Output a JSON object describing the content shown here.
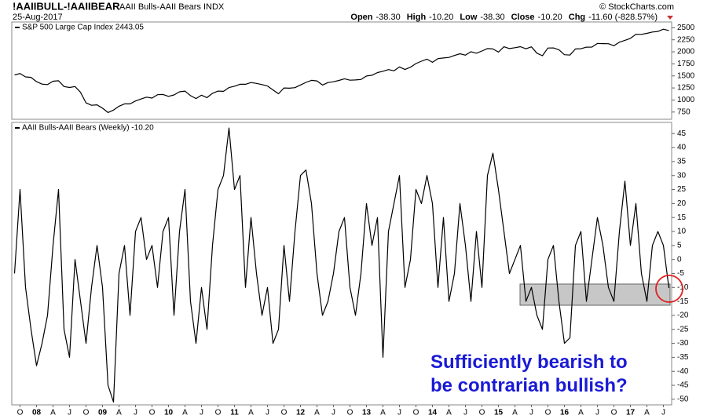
{
  "chart_data": [
    {
      "type": "line",
      "title": "!AAIIBULL-!AAIIBEAR",
      "subtitle": "AAII Bulls-AAII Bears INDX",
      "date": "25-Aug-2017",
      "source": "© StockCharts.com",
      "quote": [
        {
          "label": "Open",
          "value": "-38.30"
        },
        {
          "label": "High",
          "value": "-10.20"
        },
        {
          "label": "Low",
          "value": "-38.30"
        },
        {
          "label": "Close",
          "value": "-10.20"
        },
        {
          "label": "Chg",
          "value": "-11.60 (-828.57%)"
        }
      ],
      "series": [
        {
          "name": "S&P 500 Large Cap Index 2443.05",
          "color": "#000000",
          "values": [
            1520,
            1550,
            1480,
            1470,
            1380,
            1330,
            1320,
            1390,
            1400,
            1280,
            1260,
            1280,
            1160,
            940,
            890,
            900,
            830,
            740,
            790,
            870,
            920,
            920,
            980,
            1020,
            1060,
            1040,
            1110,
            1115,
            1075,
            1105,
            1170,
            1185,
            1090,
            1030,
            1100,
            1050,
            1140,
            1185,
            1180,
            1258,
            1286,
            1327,
            1326,
            1363,
            1345,
            1320,
            1290,
            1210,
            1130,
            1250,
            1245,
            1257,
            1312,
            1365,
            1408,
            1397,
            1310,
            1362,
            1379,
            1406,
            1440,
            1412,
            1416,
            1426,
            1498,
            1514,
            1569,
            1597,
            1631,
            1606,
            1686,
            1633,
            1682,
            1757,
            1806,
            1848,
            1783,
            1859,
            1872,
            1884,
            1924,
            1960,
            1931,
            2003,
            1972,
            2018,
            2068,
            2059,
            1995,
            2105,
            2068,
            2086,
            2107,
            2063,
            2104,
            1972,
            1920,
            2079,
            2080,
            2044,
            1940,
            1932,
            2060,
            2065,
            2097,
            2099,
            2174,
            2171,
            2168,
            2126,
            2199,
            2239,
            2279,
            2364,
            2363,
            2384,
            2412,
            2423,
            2470,
            2443
          ]
        }
      ],
      "ylim": [
        600,
        2620
      ],
      "yticks": [
        750,
        1000,
        1250,
        1500,
        1750,
        2000,
        2250,
        2500
      ],
      "grid": false
    },
    {
      "type": "line",
      "categories": [
        null,
        "O",
        null,
        null,
        "08",
        null,
        null,
        "A",
        null,
        null,
        "J",
        null,
        null,
        "O",
        null,
        null,
        "09",
        null,
        null,
        "A",
        null,
        null,
        "J",
        null,
        null,
        "O",
        null,
        null,
        "10",
        null,
        null,
        "A",
        null,
        null,
        "J",
        null,
        null,
        "O",
        null,
        null,
        "11",
        null,
        null,
        "A",
        null,
        null,
        "J",
        null,
        null,
        "O",
        null,
        null,
        "12",
        null,
        null,
        "A",
        null,
        null,
        "J",
        null,
        null,
        "O",
        null,
        null,
        "13",
        null,
        null,
        "A",
        null,
        null,
        "J",
        null,
        null,
        "O",
        null,
        null,
        "14",
        null,
        null,
        "A",
        null,
        null,
        "J",
        null,
        null,
        "O",
        null,
        null,
        "15",
        null,
        null,
        "A",
        null,
        null,
        "J",
        null,
        null,
        "O",
        null,
        null,
        "16",
        null,
        null,
        "A",
        null,
        null,
        "J",
        null,
        null,
        "O",
        null,
        null,
        "17",
        null,
        null,
        "A",
        null,
        null,
        "J",
        null
      ],
      "series": [
        {
          "name": "AAII Bulls-AAII Bears (Weekly) -10.20",
          "color": "#000000",
          "values": [
            -5,
            25,
            -10,
            -25,
            -38,
            -30,
            -20,
            5,
            25,
            -25,
            -35,
            0,
            -15,
            -30,
            -10,
            5,
            -10,
            -45,
            -51,
            -5,
            5,
            -20,
            10,
            15,
            0,
            5,
            -10,
            10,
            15,
            -20,
            10,
            25,
            -15,
            -30,
            -10,
            -25,
            5,
            25,
            30,
            47,
            25,
            30,
            -10,
            15,
            -5,
            -20,
            -10,
            -30,
            -25,
            5,
            -15,
            10,
            30,
            32,
            20,
            -5,
            -20,
            -15,
            -5,
            10,
            15,
            -10,
            -20,
            -5,
            20,
            5,
            15,
            -35,
            10,
            20,
            30,
            -10,
            0,
            25,
            20,
            30,
            20,
            -10,
            15,
            -15,
            -5,
            20,
            5,
            -15,
            10,
            -10,
            30,
            38,
            25,
            10,
            -5,
            0,
            5,
            -15,
            -10,
            -20,
            -25,
            0,
            5,
            -15,
            -30,
            -28,
            5,
            10,
            -15,
            0,
            15,
            5,
            -10,
            -15,
            10,
            28,
            5,
            20,
            -5,
            -15,
            5,
            10,
            5,
            -10.2
          ]
        }
      ],
      "annotation": [
        "Sufficiently bearish to",
        "be contrarian bullish?"
      ],
      "ylim": [
        -52,
        49
      ],
      "yticks": [
        45,
        40,
        35,
        30,
        25,
        20,
        15,
        10,
        5,
        0,
        -5,
        -10,
        -15,
        -20,
        -25,
        -30,
        -35,
        -40,
        -45,
        -50
      ],
      "grid": false
    }
  ]
}
